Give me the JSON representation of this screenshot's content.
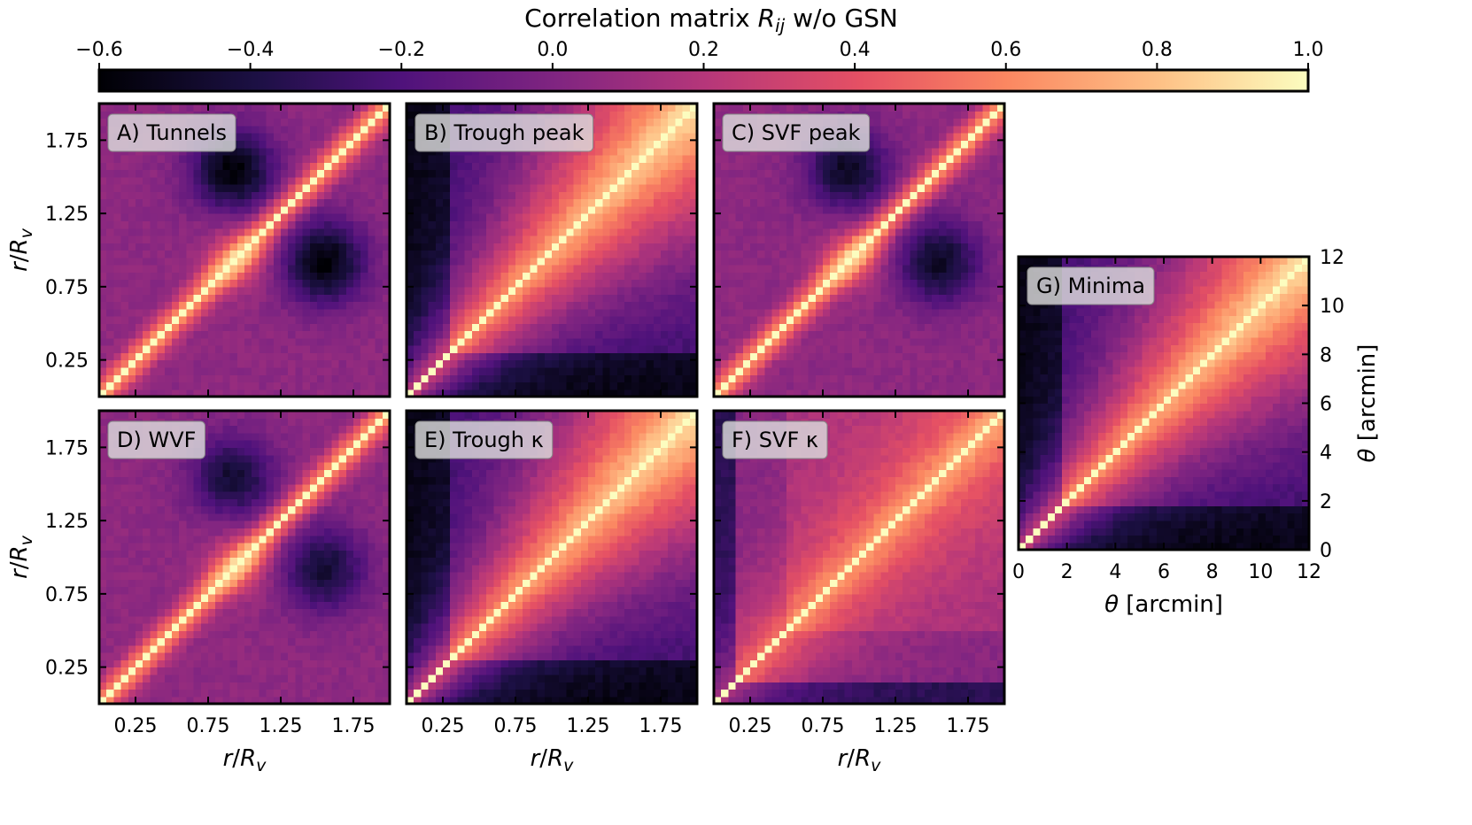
{
  "chart_data": {
    "type": "heatmap",
    "colormap": "magma",
    "colorbar": {
      "label_main": "Correlation matrix ",
      "label_sym": "R",
      "label_sub": "ij",
      "label_suffix": " w/o GSN",
      "range": [
        -0.6,
        1.0
      ],
      "ticks": [
        "−0.6",
        "−0.4",
        "−0.2",
        "0.0",
        "0.2",
        "0.4",
        "0.6",
        "0.8",
        "1.0"
      ]
    },
    "rv_axis": {
      "label_r": "r",
      "label_R": "R",
      "label_v": "v",
      "range": [
        0,
        2
      ],
      "ticks": [
        "0.25",
        "0.75",
        "1.25",
        "1.75"
      ],
      "tick_values": [
        0.25,
        0.75,
        1.25,
        1.75
      ]
    },
    "theta_axis": {
      "label_sym": "θ",
      "label_unit": " [arcmin]",
      "range": [
        0,
        12
      ],
      "ticks": [
        "0",
        "2",
        "4",
        "6",
        "8",
        "10",
        "12"
      ],
      "tick_values": [
        0,
        2,
        4,
        6,
        8,
        10,
        12
      ]
    },
    "panels": [
      {
        "id": "A",
        "label": "A) Tunnels",
        "mode": "tunnel",
        "neg": -0.6
      },
      {
        "id": "B",
        "label": "B) Trough peak",
        "mode": "peak"
      },
      {
        "id": "C",
        "label": "C) SVF peak",
        "mode": "tunnel",
        "neg": -0.5
      },
      {
        "id": "D",
        "label": "D) WVF",
        "mode": "tunnel",
        "neg": -0.45
      },
      {
        "id": "E",
        "label": "E) Trough κ",
        "mode": "peak"
      },
      {
        "id": "F",
        "label": "F) SVF κ",
        "mode": "svfk"
      },
      {
        "id": "G",
        "label": "G) Minima",
        "mode": "peak"
      }
    ],
    "grid_cells": 40
  }
}
